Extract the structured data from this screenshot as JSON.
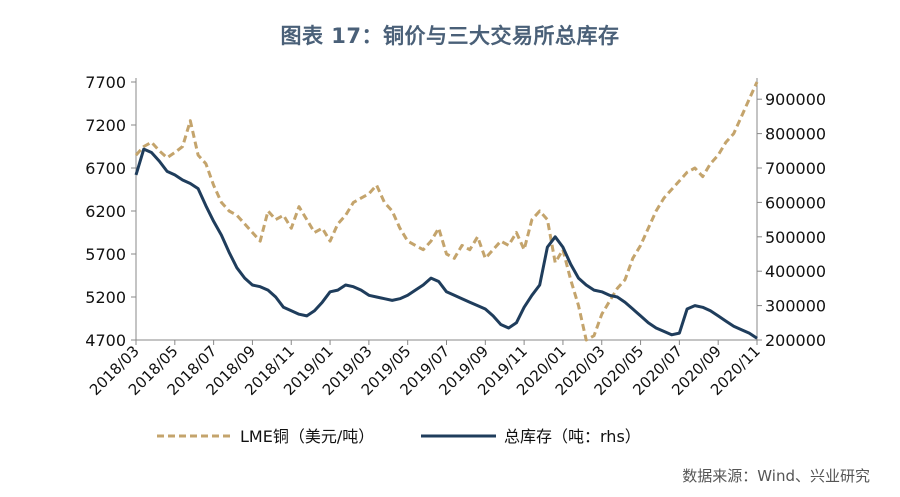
{
  "page": {
    "title": "图表 17：铜价与三大交易所总库存",
    "source": "数据来源：Wind、兴业研究"
  },
  "chart_data": {
    "type": "line",
    "title": "图表 17：铜价与三大交易所总库存",
    "x_tick_labels": [
      "2018/03",
      "2018/05",
      "2018/07",
      "2018/09",
      "2018/11",
      "2019/01",
      "2019/03",
      "2019/05",
      "2019/07",
      "2019/09",
      "2019/11",
      "2020/01",
      "2020/03",
      "2020/05",
      "2020/07",
      "2020/09",
      "2020/11"
    ],
    "x_range": [
      0,
      40
    ],
    "left_axis": {
      "range": [
        4700,
        7700
      ],
      "ticks": [
        4700,
        5200,
        5700,
        6200,
        6700,
        7200,
        7700
      ]
    },
    "right_axis": {
      "range": [
        200000,
        950000
      ],
      "ticks": [
        200000,
        300000,
        400000,
        500000,
        600000,
        700000,
        800000,
        900000
      ]
    },
    "legend_position": "bottom",
    "series": [
      {
        "name": "LME铜（美元/吨）",
        "axis": "left",
        "color": "#c4a46c",
        "style": "dashed",
        "x": [
          0,
          0.5,
          1,
          1.5,
          2,
          2.5,
          3,
          3.5,
          4,
          4.5,
          5,
          5.5,
          6,
          6.5,
          7,
          7.5,
          8,
          8.5,
          9,
          9.5,
          10,
          10.5,
          11,
          11.5,
          12,
          12.5,
          13,
          13.5,
          14,
          14.5,
          15,
          15.5,
          16,
          16.5,
          17,
          17.5,
          18,
          18.5,
          19,
          19.5,
          20,
          20.5,
          21,
          21.5,
          22,
          22.5,
          23,
          23.5,
          24,
          24.5,
          25,
          25.5,
          26,
          26.5,
          27,
          27.5,
          28,
          28.5,
          29,
          29.5,
          30,
          30.5,
          31,
          31.5,
          32,
          32.5,
          33,
          33.5,
          34,
          34.5,
          35,
          35.5,
          36,
          36.5,
          37,
          37.5,
          38,
          38.5,
          39,
          39.5,
          40
        ],
        "values": [
          6850,
          6950,
          7000,
          6900,
          6820,
          6880,
          6950,
          7250,
          6850,
          6750,
          6500,
          6300,
          6200,
          6150,
          6050,
          5950,
          5850,
          6200,
          6100,
          6150,
          6000,
          6250,
          6100,
          5950,
          6000,
          5850,
          6050,
          6150,
          6300,
          6350,
          6400,
          6500,
          6300,
          6200,
          6000,
          5850,
          5800,
          5750,
          5850,
          6000,
          5700,
          5650,
          5800,
          5750,
          5900,
          5650,
          5750,
          5850,
          5800,
          5950,
          5750,
          6100,
          6200,
          6100,
          5600,
          5750,
          5400,
          5100,
          4700,
          4750,
          5000,
          5150,
          5300,
          5400,
          5650,
          5800,
          6000,
          6200,
          6350,
          6450,
          6550,
          6650,
          6700,
          6600,
          6750,
          6850,
          7000,
          7100,
          7300,
          7500,
          7700
        ]
      },
      {
        "name": "总库存（吨：rhs）",
        "axis": "right",
        "color": "#1f3d5c",
        "style": "solid",
        "x": [
          0,
          0.5,
          1,
          1.5,
          2,
          2.5,
          3,
          3.5,
          4,
          4.5,
          5,
          5.5,
          6,
          6.5,
          7,
          7.5,
          8,
          8.5,
          9,
          9.5,
          10,
          10.5,
          11,
          11.5,
          12,
          12.5,
          13,
          13.5,
          14,
          14.5,
          15,
          15.5,
          16,
          16.5,
          17,
          17.5,
          18,
          18.5,
          19,
          19.5,
          20,
          20.5,
          21,
          21.5,
          22,
          22.5,
          23,
          23.5,
          24,
          24.5,
          25,
          25.5,
          26,
          26.5,
          27,
          27.5,
          28,
          28.5,
          29,
          29.5,
          30,
          30.5,
          31,
          31.5,
          32,
          32.5,
          33,
          33.5,
          34,
          34.5,
          35,
          35.5,
          36,
          36.5,
          37,
          37.5,
          38,
          38.5,
          39,
          39.5,
          40
        ],
        "values": [
          680000,
          755000,
          745000,
          720000,
          690000,
          680000,
          665000,
          655000,
          640000,
          590000,
          545000,
          505000,
          455000,
          410000,
          380000,
          360000,
          355000,
          345000,
          325000,
          295000,
          285000,
          275000,
          270000,
          285000,
          310000,
          340000,
          345000,
          360000,
          355000,
          345000,
          330000,
          325000,
          320000,
          315000,
          320000,
          330000,
          345000,
          360000,
          380000,
          370000,
          340000,
          330000,
          320000,
          310000,
          300000,
          290000,
          270000,
          245000,
          235000,
          250000,
          295000,
          330000,
          360000,
          470000,
          500000,
          470000,
          420000,
          380000,
          360000,
          345000,
          340000,
          330000,
          325000,
          310000,
          290000,
          270000,
          250000,
          235000,
          225000,
          215000,
          220000,
          290000,
          300000,
          295000,
          285000,
          270000,
          255000,
          240000,
          230000,
          220000,
          205000
        ]
      }
    ]
  }
}
